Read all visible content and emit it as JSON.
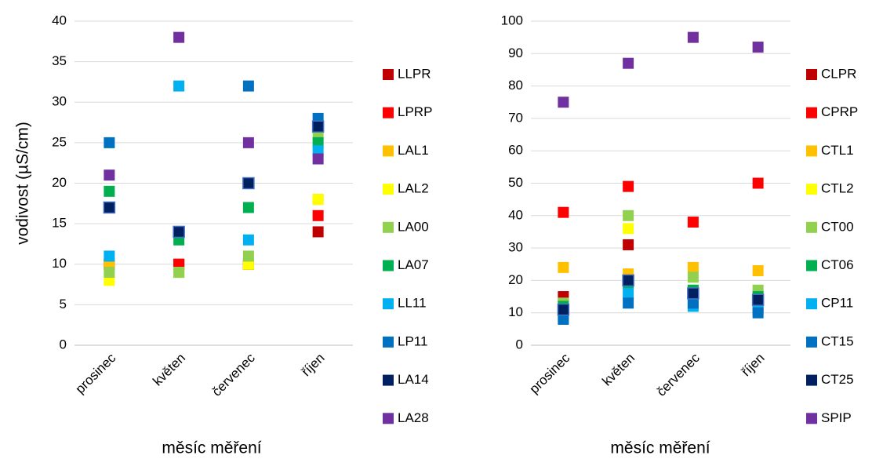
{
  "chart_data": [
    {
      "type": "scatter",
      "y_label": "vodivost (µS/cm)",
      "x_label": "měsíc měření",
      "categories": [
        "prosinec",
        "květen",
        "červenec",
        "říjen"
      ],
      "ylim": [
        0,
        40
      ],
      "yticks": [
        0,
        5,
        10,
        15,
        20,
        25,
        30,
        35,
        40
      ],
      "grid": true,
      "series": [
        {
          "name": "LLPR",
          "color": "#c00000",
          "values": [
            10,
            10,
            10,
            14
          ]
        },
        {
          "name": "LPRP",
          "color": "#ff0000",
          "values": [
            10,
            10,
            10,
            16
          ]
        },
        {
          "name": "LAL1",
          "color": "#ffc000",
          "values": [
            10,
            9,
            10,
            18
          ]
        },
        {
          "name": "LAL2",
          "color": "#ffff00",
          "values": [
            8,
            9,
            10,
            18
          ]
        },
        {
          "name": "LA00",
          "color": "#92d050",
          "values": [
            9,
            9,
            11,
            26
          ]
        },
        {
          "name": "LA07",
          "color": "#00b050",
          "values": [
            19,
            13,
            17,
            25
          ]
        },
        {
          "name": "LL11",
          "color": "#00b0f0",
          "values": [
            11,
            32,
            13,
            24
          ]
        },
        {
          "name": "LP11",
          "color": "#0070c0",
          "values": [
            25,
            14,
            32,
            28
          ]
        },
        {
          "name": "LA14",
          "color": "#002060",
          "values": [
            17,
            14,
            20,
            27
          ]
        },
        {
          "name": "LA28",
          "color": "#7030a0",
          "values": [
            21,
            38,
            25,
            23
          ]
        }
      ]
    },
    {
      "type": "scatter",
      "x_label": "měsíc měření",
      "categories": [
        "prosinec",
        "květen",
        "červenec",
        "říjen"
      ],
      "ylim": [
        0,
        100
      ],
      "yticks": [
        0,
        10,
        20,
        30,
        40,
        50,
        60,
        70,
        80,
        90,
        100
      ],
      "grid": true,
      "series": [
        {
          "name": "CLPR",
          "color": "#c00000",
          "values": [
            15,
            31,
            16,
            12
          ]
        },
        {
          "name": "CPRP",
          "color": "#ff0000",
          "values": [
            41,
            49,
            38,
            50
          ]
        },
        {
          "name": "CTL1",
          "color": "#ffc000",
          "values": [
            24,
            22,
            24,
            23
          ]
        },
        {
          "name": "CTL2",
          "color": "#ffff00",
          "values": [
            12,
            36,
            17,
            16
          ]
        },
        {
          "name": "CT00",
          "color": "#92d050",
          "values": [
            13,
            40,
            21,
            17
          ]
        },
        {
          "name": "CT06",
          "color": "#00b050",
          "values": [
            12,
            19,
            17,
            15
          ]
        },
        {
          "name": "CP11",
          "color": "#00b0f0",
          "values": [
            9,
            16,
            12,
            11
          ]
        },
        {
          "name": "CT15",
          "color": "#0070c0",
          "values": [
            8,
            13,
            13,
            10
          ]
        },
        {
          "name": "CT25",
          "color": "#002060",
          "values": [
            11,
            20,
            16,
            14
          ]
        },
        {
          "name": "SPIP",
          "color": "#7030a0",
          "values": [
            75,
            87,
            95,
            92
          ]
        }
      ]
    }
  ]
}
